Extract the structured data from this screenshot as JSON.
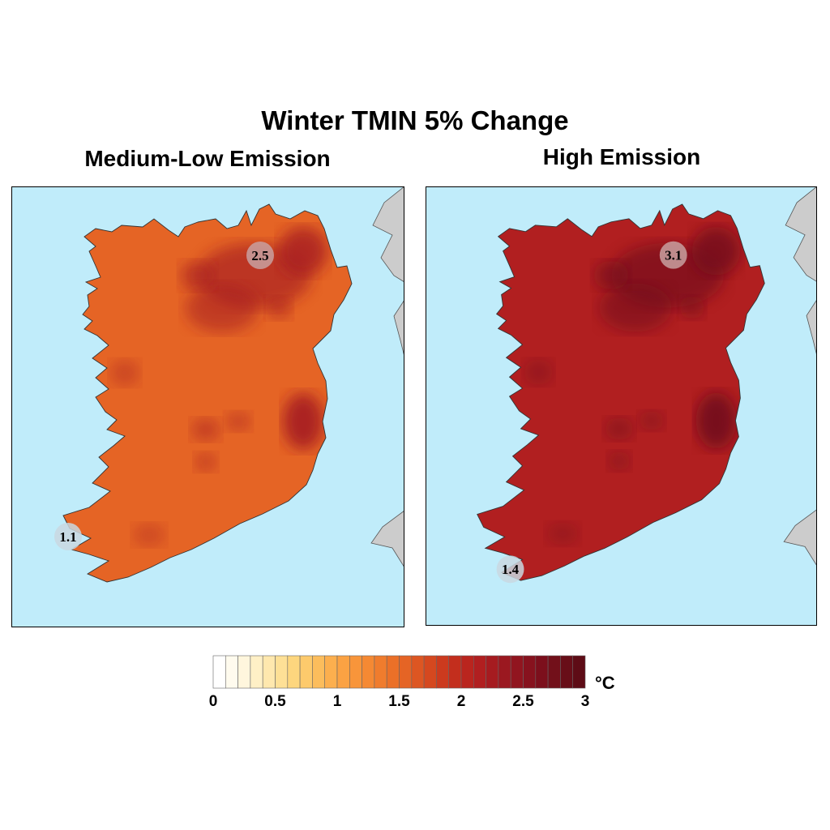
{
  "title": "Winter TMIN 5% Change",
  "panels": [
    {
      "title": "Medium-Low Emission",
      "max_label": "2.5",
      "min_label": "1.1",
      "typical_value": 1.55,
      "hotspot_value": 2.3
    },
    {
      "title": "High Emission",
      "max_label": "3.1",
      "min_label": "1.4",
      "typical_value": 2.1,
      "hotspot_value": 2.7
    }
  ],
  "colorbar": {
    "unit": "°C",
    "min": 0,
    "max": 3,
    "step": 0.1,
    "tick_labels": [
      "0",
      "0.5",
      "1",
      "1.5",
      "2",
      "2.5",
      "3"
    ],
    "colors": [
      "#ffffff",
      "#fffbee",
      "#fff6dd",
      "#fff0c6",
      "#ffe8ae",
      "#fee096",
      "#fdd67e",
      "#fdca6c",
      "#fcbd5c",
      "#fcaf4e",
      "#fba243",
      "#f8953a",
      "#f58933",
      "#f07c2d",
      "#eb7028",
      "#e56425",
      "#dd5622",
      "#d5481f",
      "#cc3a1e",
      "#c32e1d",
      "#ba251e",
      "#b11f20",
      "#a61b20",
      "#9b1820",
      "#91151f",
      "#87121e",
      "#7c0f1c",
      "#72101a",
      "#680e18",
      "#5e0c16"
    ]
  },
  "colors": {
    "sea": "#c0ecfa",
    "land_outside": "#cccccc"
  }
}
